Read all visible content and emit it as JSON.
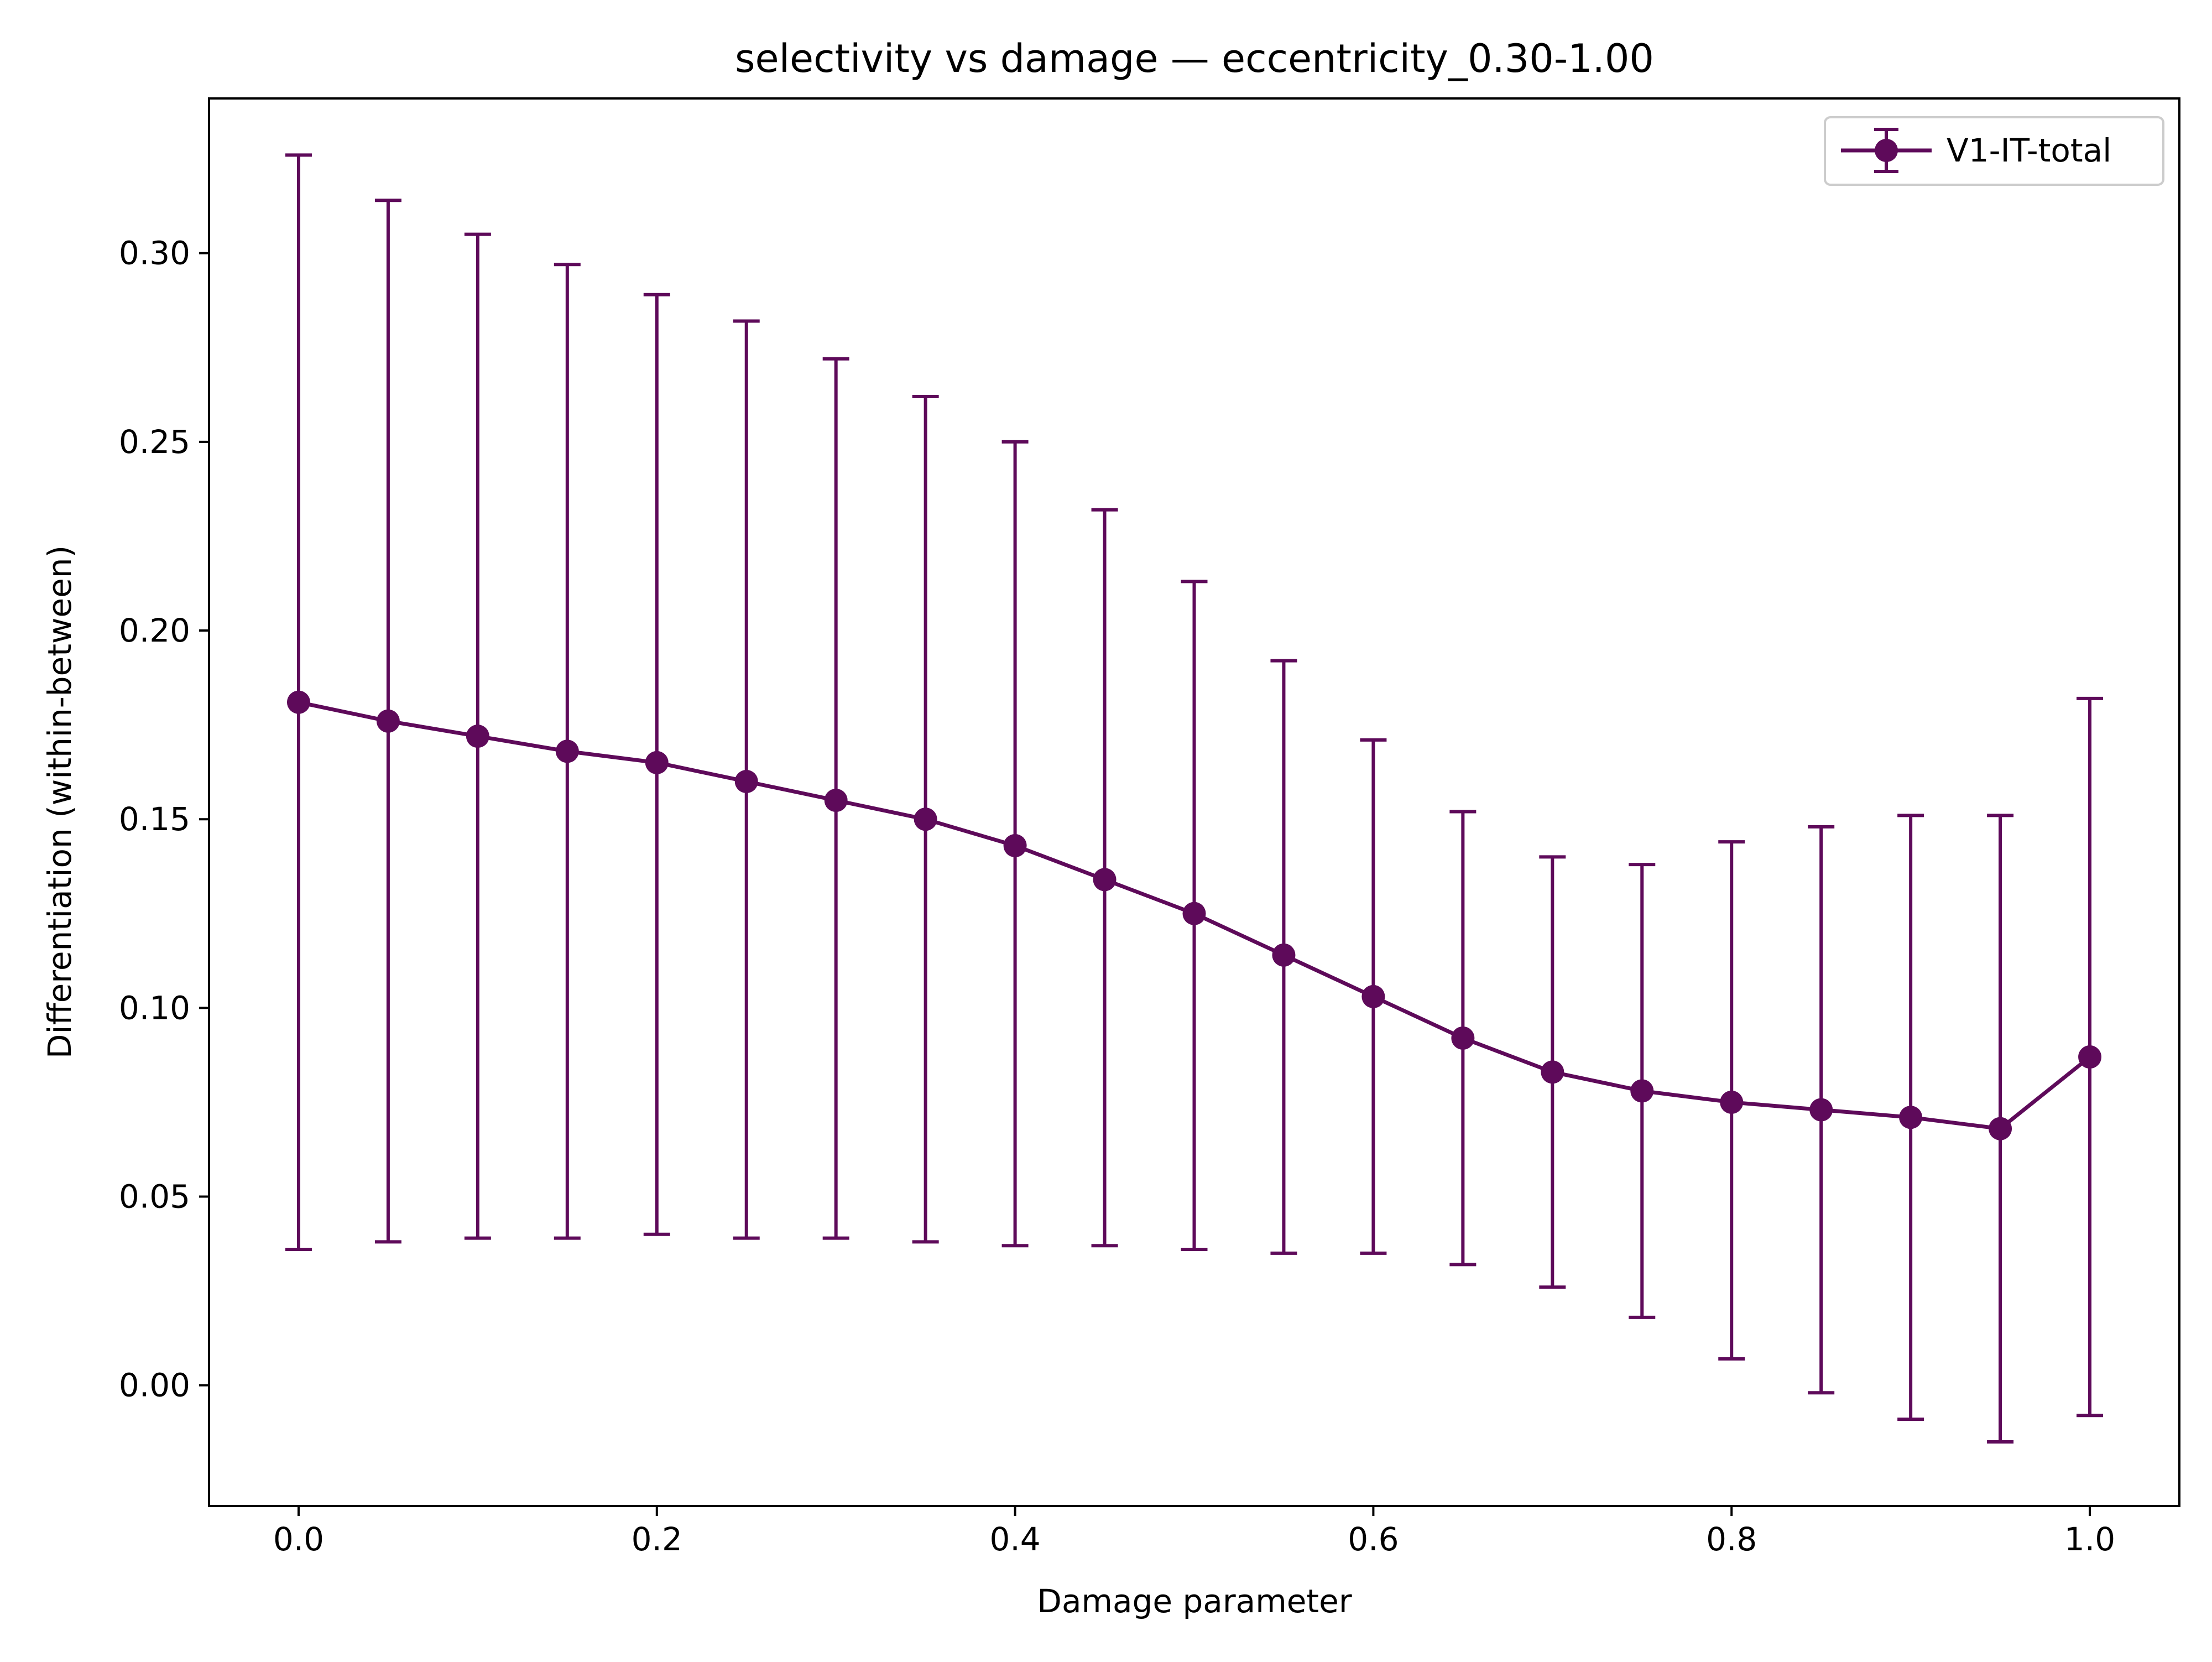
{
  "chart_data": {
    "type": "line",
    "title": "selectivity vs damage — eccentricity_0.30-1.00",
    "xlabel": "Damage parameter",
    "ylabel": "Differentiation (within-between)",
    "xlim": [
      -0.05,
      1.05
    ],
    "ylim": [
      -0.032,
      0.341
    ],
    "x_ticks": [
      0.0,
      0.2,
      0.4,
      0.6,
      0.8,
      1.0
    ],
    "x_tick_labels": [
      "0.0",
      "0.2",
      "0.4",
      "0.6",
      "0.8",
      "1.0"
    ],
    "y_ticks": [
      0.0,
      0.05,
      0.1,
      0.15,
      0.2,
      0.25,
      0.3
    ],
    "y_tick_labels": [
      "0.00",
      "0.05",
      "0.10",
      "0.15",
      "0.20",
      "0.25",
      "0.30"
    ],
    "grid": false,
    "legend_position": "top-right",
    "series": [
      {
        "name": "V1-IT-total",
        "color": "#5e0a5a",
        "marker": "circle",
        "x": [
          0.0,
          0.05,
          0.1,
          0.15,
          0.2,
          0.25,
          0.3,
          0.35,
          0.4,
          0.45,
          0.5,
          0.55,
          0.6,
          0.65,
          0.7,
          0.75,
          0.8,
          0.85,
          0.9,
          0.95,
          1.0
        ],
        "y": [
          0.181,
          0.176,
          0.172,
          0.168,
          0.165,
          0.16,
          0.155,
          0.15,
          0.143,
          0.134,
          0.125,
          0.114,
          0.103,
          0.092,
          0.083,
          0.078,
          0.075,
          0.073,
          0.071,
          0.068,
          0.087
        ],
        "yerr_low": [
          0.036,
          0.038,
          0.039,
          0.039,
          0.04,
          0.039,
          0.039,
          0.038,
          0.037,
          0.037,
          0.036,
          0.035,
          0.035,
          0.032,
          0.026,
          0.018,
          0.007,
          -0.002,
          -0.009,
          -0.015,
          -0.008
        ],
        "yerr_high": [
          0.326,
          0.314,
          0.305,
          0.297,
          0.289,
          0.282,
          0.272,
          0.262,
          0.25,
          0.232,
          0.213,
          0.192,
          0.171,
          0.152,
          0.14,
          0.138,
          0.144,
          0.148,
          0.151,
          0.151,
          0.182
        ]
      }
    ]
  }
}
